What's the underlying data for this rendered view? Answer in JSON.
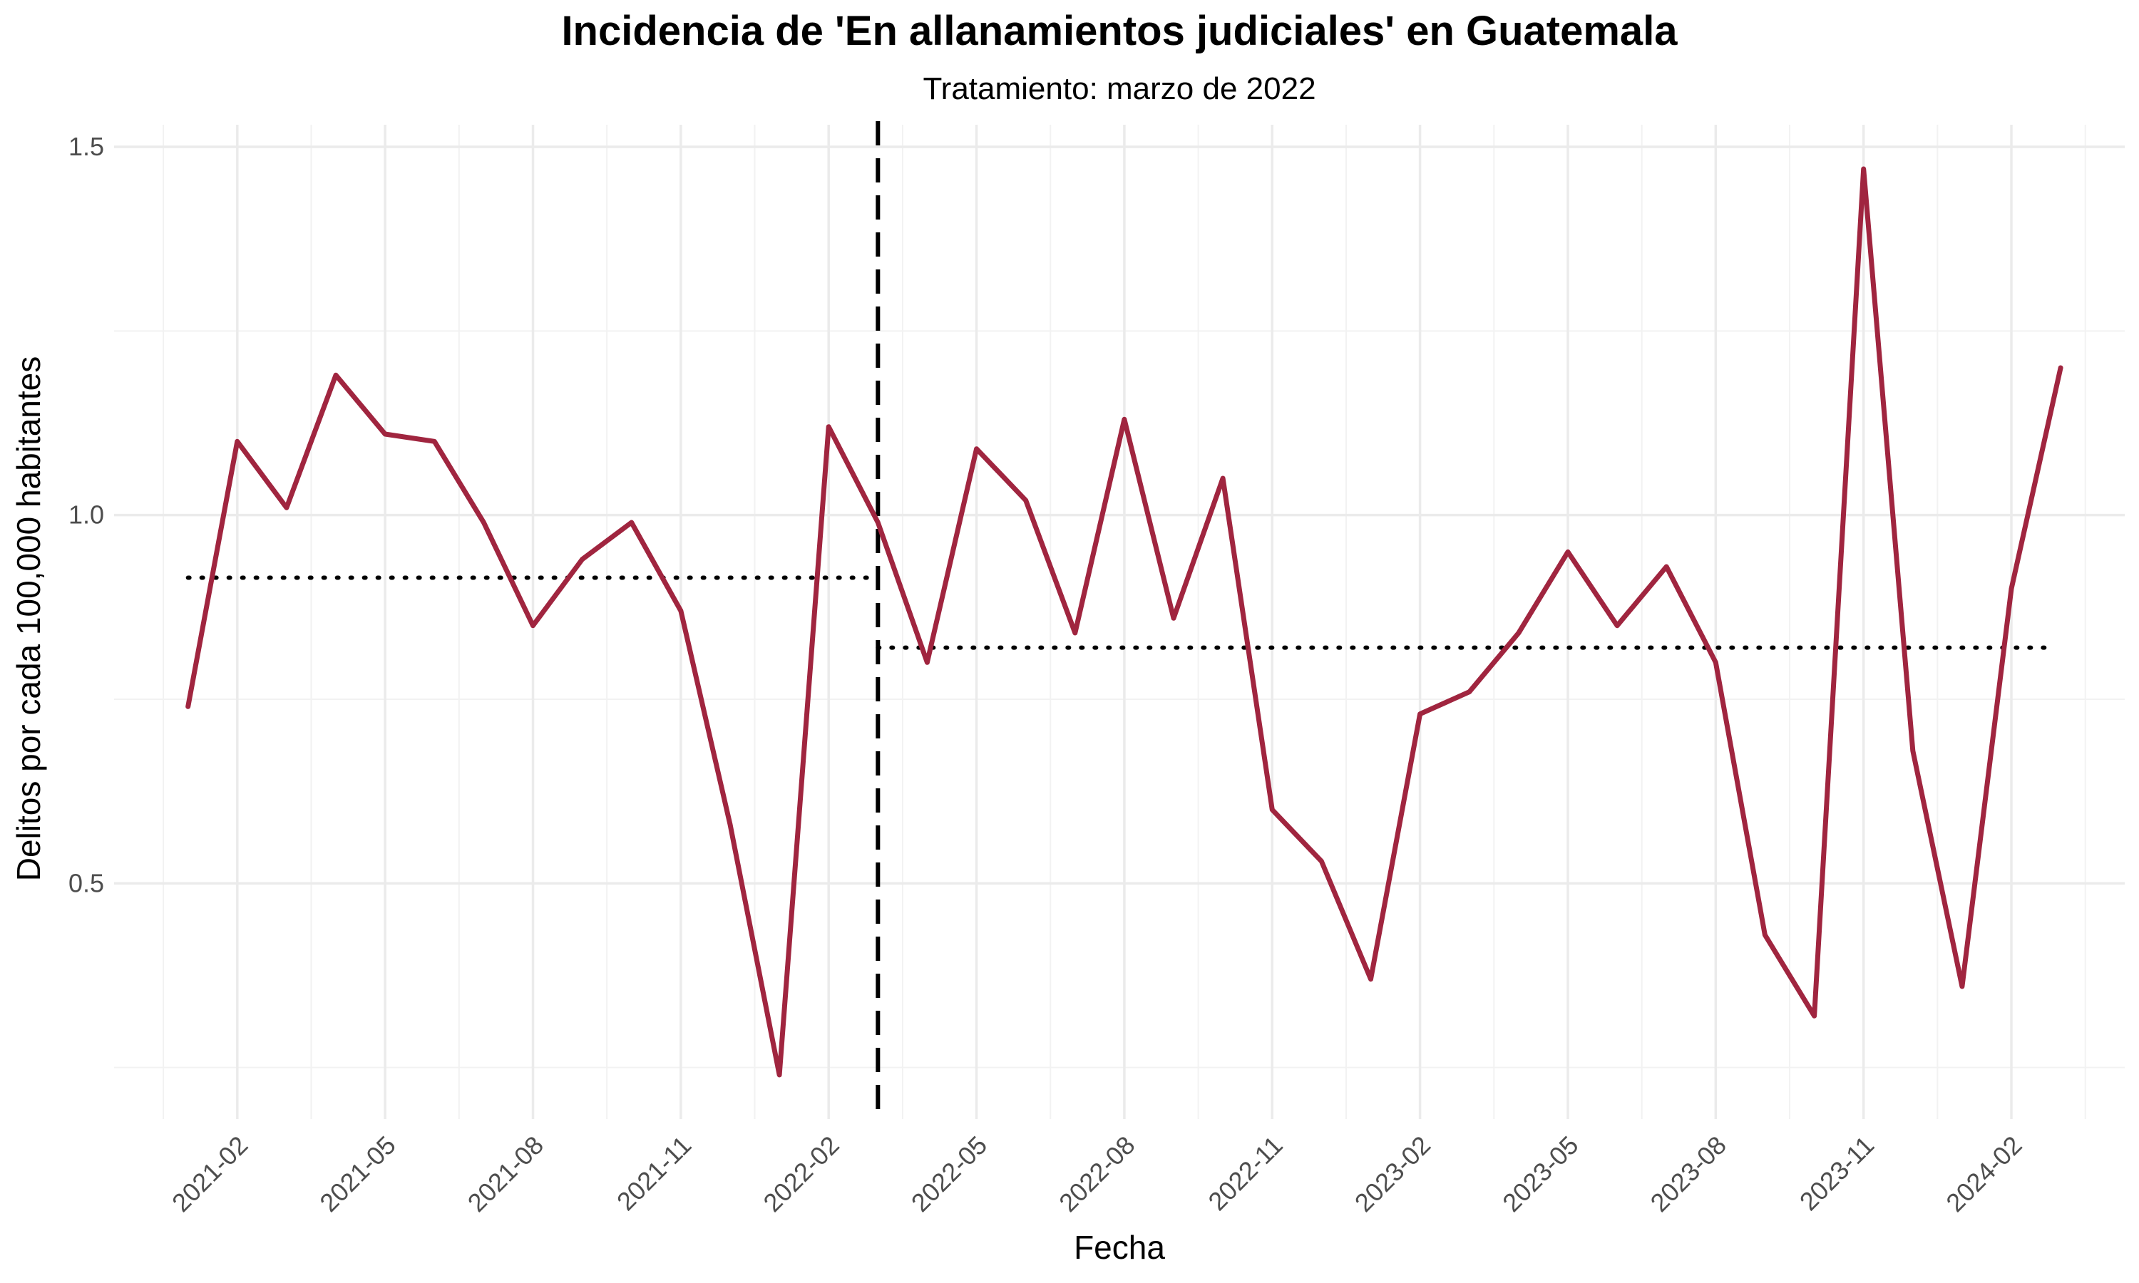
{
  "chart_data": {
    "type": "line",
    "title": "Incidencia de 'En allanamientos judiciales' en Guatemala",
    "subtitle": "Tratamiento: marzo de 2022",
    "xlabel": "Fecha",
    "ylabel": "Delitos por cada 100,000 habitantes",
    "x_ticks": [
      "2021-02",
      "2021-05",
      "2021-08",
      "2021-11",
      "2022-02",
      "2022-05",
      "2022-08",
      "2022-11",
      "2023-02",
      "2023-05",
      "2023-08",
      "2023-11",
      "2024-02"
    ],
    "y_ticks": [
      "0.5",
      "1.0",
      "1.5"
    ],
    "ylim": [
      0.18,
      1.53
    ],
    "treatment_date": "2022-03",
    "pre_mean": 0.915,
    "post_mean": 0.82,
    "colors": {
      "line": "#a0253f",
      "reference": "#000000",
      "grid": "#ebebeb"
    },
    "series": [
      {
        "name": "Incidencia",
        "x": [
          "2021-01",
          "2021-02",
          "2021-03",
          "2021-04",
          "2021-05",
          "2021-06",
          "2021-07",
          "2021-08",
          "2021-09",
          "2021-10",
          "2021-11",
          "2021-12",
          "2022-01",
          "2022-02",
          "2022-03",
          "2022-04",
          "2022-05",
          "2022-06",
          "2022-07",
          "2022-08",
          "2022-09",
          "2022-10",
          "2022-11",
          "2022-12",
          "2023-01",
          "2023-02",
          "2023-03",
          "2023-04",
          "2023-05",
          "2023-06",
          "2023-07",
          "2023-08",
          "2023-09",
          "2023-10",
          "2023-11",
          "2023-12",
          "2024-01",
          "2024-02",
          "2024-03"
        ],
        "values": [
          0.74,
          1.1,
          1.01,
          1.19,
          1.11,
          1.1,
          0.99,
          0.85,
          0.94,
          0.99,
          0.87,
          0.58,
          0.24,
          1.12,
          0.99,
          0.8,
          1.09,
          1.02,
          0.84,
          1.13,
          0.86,
          1.05,
          0.6,
          0.53,
          0.37,
          0.73,
          0.76,
          0.84,
          0.95,
          0.85,
          0.93,
          0.8,
          0.43,
          0.32,
          1.47,
          0.68,
          0.36,
          0.9,
          1.2
        ]
      }
    ]
  }
}
